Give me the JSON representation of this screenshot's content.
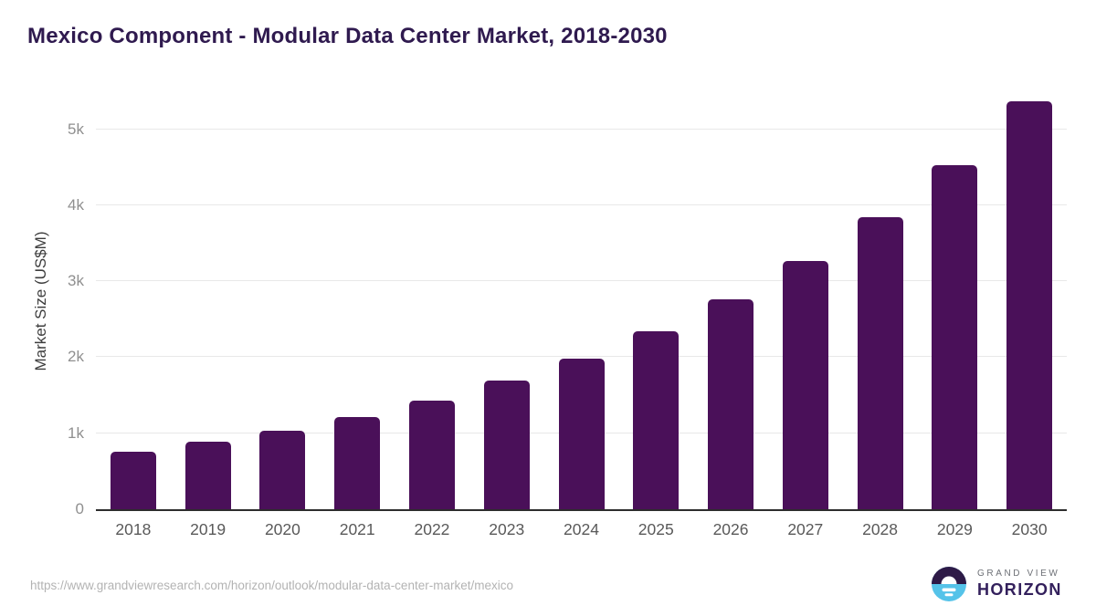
{
  "header": {
    "title": "Mexico Component - Modular Data Center Market, 2018-2030"
  },
  "chart_data": {
    "type": "bar",
    "title": "Mexico Component - Modular Data Center Market, 2018-2030",
    "categories": [
      "2018",
      "2019",
      "2020",
      "2021",
      "2022",
      "2023",
      "2024",
      "2025",
      "2026",
      "2027",
      "2028",
      "2029",
      "2030"
    ],
    "values": [
      755,
      890,
      1035,
      1210,
      1435,
      1695,
      1985,
      2345,
      2765,
      3265,
      3845,
      4530,
      5365
    ],
    "xlabel": "",
    "ylabel": "Market Size (US$M)",
    "ylim": [
      0,
      5500
    ],
    "yticks": [
      {
        "value": 0,
        "label": "0"
      },
      {
        "value": 1000,
        "label": "1k"
      },
      {
        "value": 2000,
        "label": "2k"
      },
      {
        "value": 3000,
        "label": "3k"
      },
      {
        "value": 4000,
        "label": "4k"
      },
      {
        "value": 5000,
        "label": "5k"
      }
    ],
    "grid": "horizontal",
    "legend_position": "none",
    "bar_color": "#4a1059",
    "axis_line_color": "#2d2d2d",
    "gridline_color": "#e8e8e8"
  },
  "footer": {
    "source_url": "https://www.grandviewresearch.com/horizon/outlook/modular-data-center-market/mexico",
    "logo": {
      "line1": "GRAND VIEW",
      "line2": "HORIZON",
      "icon_top_color": "#2e1a47",
      "icon_bottom_color": "#55c3e9"
    }
  }
}
